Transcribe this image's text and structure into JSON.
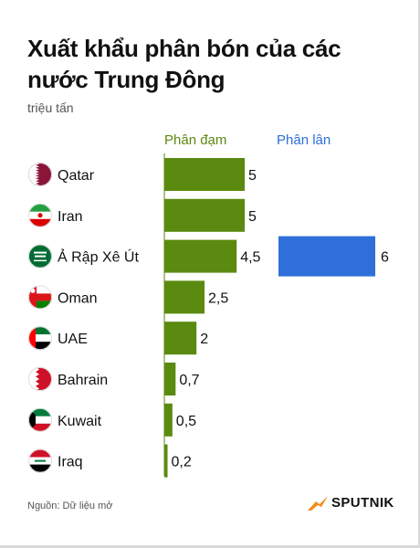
{
  "title": "Xuất khẩu phân bón của các nước Trung Đông",
  "unit_label": "triệu tấn",
  "source": "Nguồn: Dữ liệu mở",
  "brand": "SPUTNIK",
  "colors": {
    "nitrogen": "#5a8a0f",
    "phosphate": "#2e6fd9",
    "orange": "#f28c1b"
  },
  "chart_data": {
    "type": "bar",
    "orientation": "horizontal",
    "title": "Xuất khẩu phân bón của các nước Trung Đông",
    "unit": "triệu tấn",
    "categories": [
      "Qatar",
      "Iran",
      "Ả Rập Xê Út",
      "Oman",
      "UAE",
      "Bahrain",
      "Kuwait",
      "Iraq"
    ],
    "flag_icons": [
      "qatar-flag-icon",
      "iran-flag-icon",
      "saudi-arabia-flag-icon",
      "oman-flag-icon",
      "uae-flag-icon",
      "bahrain-flag-icon",
      "kuwait-flag-icon",
      "iraq-flag-icon"
    ],
    "series": [
      {
        "name": "Phân đạm",
        "values": [
          5,
          5,
          4.5,
          2.5,
          2,
          0.7,
          0.5,
          0.2
        ],
        "labels": [
          "5",
          "5",
          "4,5",
          "2,5",
          "2",
          "0,7",
          "0,5",
          "0,2"
        ],
        "color": "#5a8a0f"
      },
      {
        "name": "Phân lân",
        "values": [
          null,
          null,
          6,
          null,
          null,
          null,
          null,
          null
        ],
        "labels": [
          "",
          "",
          "6",
          "",
          "",
          "",
          "",
          ""
        ],
        "color": "#2e6fd9"
      }
    ],
    "legend_position": "top",
    "grid": false
  }
}
